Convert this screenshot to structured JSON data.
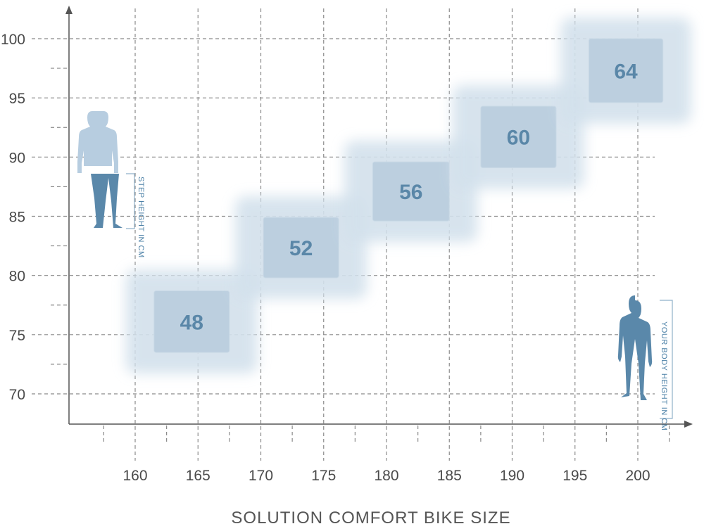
{
  "chart_data": {
    "type": "scatter",
    "title": "",
    "xlabel": "SOLUTION COMFORT BIKE SIZE",
    "ylabel": "",
    "xlim": [
      150,
      205
    ],
    "ylim": [
      65,
      102
    ],
    "x_ticks": [
      160,
      165,
      170,
      175,
      180,
      185,
      190,
      195,
      200
    ],
    "y_ticks": [
      70,
      75,
      80,
      85,
      90,
      95,
      100
    ],
    "grid": true,
    "annotations": {
      "step_height": "STEP HEIGHT IN CM",
      "body_height": "YOUR BODY HEIGHT IN CM"
    },
    "sizes": [
      {
        "label": "48",
        "body_height": [
          161.5,
          167.5
        ],
        "step_height": [
          73.5,
          78.7
        ]
      },
      {
        "label": "52",
        "body_height": [
          170.2,
          176.2
        ],
        "step_height": [
          79.8,
          84.9
        ]
      },
      {
        "label": "56",
        "body_height": [
          178.9,
          185.0
        ],
        "step_height": [
          84.6,
          89.6
        ]
      },
      {
        "label": "60",
        "body_height": [
          187.5,
          193.5
        ],
        "step_height": [
          89.1,
          94.3
        ]
      },
      {
        "label": "64",
        "body_height": [
          196.1,
          202.0
        ],
        "step_height": [
          94.6,
          100.0
        ]
      }
    ],
    "colors": {
      "box": "#bccfdf",
      "glow": "#d3e1ec",
      "label": "#5a87a8",
      "figure_dark": "#5a88aa",
      "figure_light": "#b7cde0",
      "grid": "#8a8a8a",
      "axis": "#555555"
    }
  }
}
